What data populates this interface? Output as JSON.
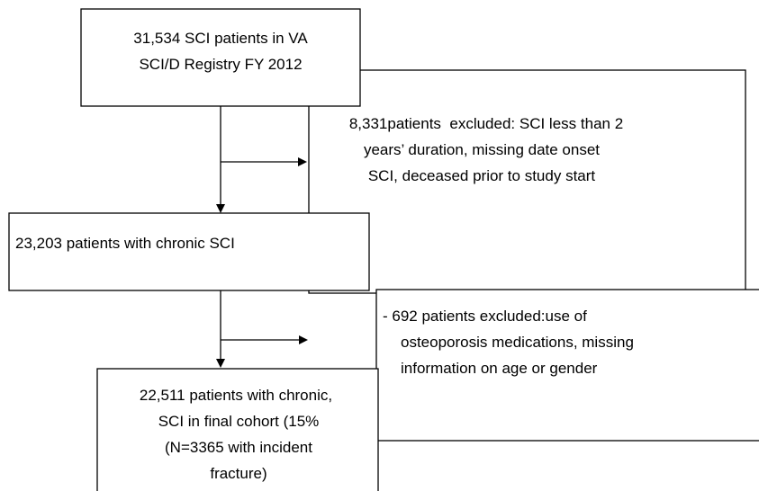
{
  "nodes": [
    {
      "lines": [
        "31,534 SCI patients in VA",
        "SCI/D Registry FY 2012"
      ]
    },
    {
      "lines": [
        "8,331patients  excluded: SCI less than 2",
        "years’ duration, missing date onset",
        "SCI, deceased prior to study start"
      ]
    },
    {
      "lines": [
        "23,203 patients with chronic SCI"
      ]
    },
    {
      "lines": [
        "- 692 patients excluded:use of",
        "osteoporosis medications, missing",
        "information on age or gender"
      ]
    },
    {
      "lines": [
        "22,511 patients with chronic,",
        "SCI in final cohort (15%",
        "(N=3365 with incident",
        "fracture)"
      ]
    }
  ]
}
